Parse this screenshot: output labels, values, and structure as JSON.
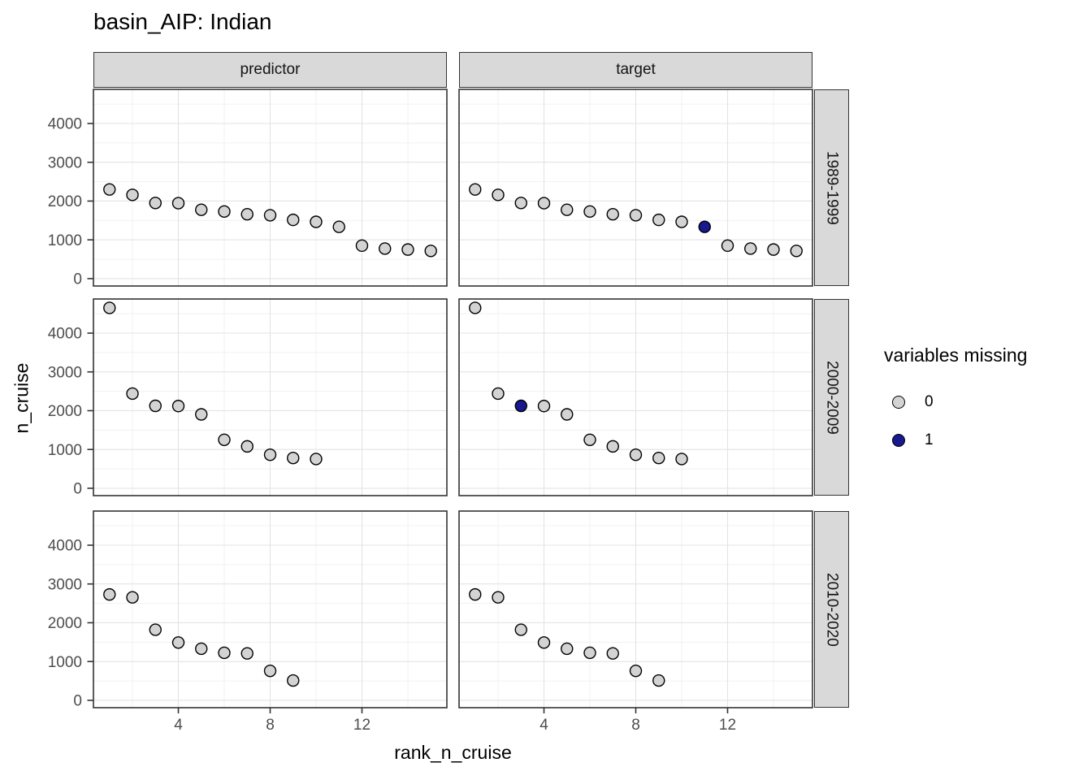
{
  "chart_data": {
    "type": "scatter",
    "title": "basin_AIP: Indian",
    "xlabel": "rank_n_cruise",
    "ylabel": "n_cruise",
    "col_facets": [
      "predictor",
      "target"
    ],
    "row_facets": [
      "1989-1999",
      "2000-2009",
      "2010-2020"
    ],
    "x_ticks": [
      4,
      8,
      12
    ],
    "x_minor": [
      2,
      6,
      10,
      14
    ],
    "y_ticks": [
      0,
      1000,
      2000,
      3000,
      4000
    ],
    "y_minor": [
      500,
      1500,
      2500,
      3500,
      4500
    ],
    "x_domain": [
      0.3,
      15.7
    ],
    "y_domain": [
      -190,
      4880
    ],
    "grid": "on",
    "legend_position": "right",
    "legend": {
      "title": "variables missing",
      "items": [
        {
          "label": "0",
          "color": "#d3d3d3"
        },
        {
          "label": "1",
          "color": "#18188f"
        }
      ]
    },
    "rows": [
      {
        "row_label": "1989-1999",
        "x": [
          1,
          2,
          3,
          4,
          5,
          6,
          7,
          8,
          9,
          10,
          11,
          12,
          13,
          14,
          15
        ],
        "n_cruise": [
          2300,
          2160,
          1950,
          1945,
          1775,
          1730,
          1660,
          1635,
          1515,
          1465,
          1335,
          850,
          775,
          750,
          715
        ],
        "target_missing_ranks": [
          11
        ]
      },
      {
        "row_label": "2000-2009",
        "x": [
          1,
          2,
          3,
          4,
          5,
          6,
          7,
          8,
          9,
          10
        ],
        "n_cruise": [
          4650,
          2440,
          2125,
          2120,
          1905,
          1250,
          1080,
          865,
          780,
          755
        ],
        "target_missing_ranks": [
          3
        ]
      },
      {
        "row_label": "2010-2020",
        "x": [
          1,
          2,
          3,
          4,
          5,
          6,
          7,
          8,
          9
        ],
        "n_cruise": [
          2730,
          2655,
          1820,
          1490,
          1330,
          1225,
          1210,
          760,
          510
        ],
        "target_missing_ranks": []
      }
    ],
    "colors": {
      "point_fill": "#d3d3d3",
      "point_missing_fill": "#18188f",
      "point_stroke": "#000000",
      "strip_bg": "#d9d9d9",
      "panel_border": "#333333",
      "grid_major": "#e3e3e3",
      "grid_minor": "#f1f1f1",
      "axis_text": "#4d4d4d",
      "tick_mark": "#333333"
    }
  }
}
